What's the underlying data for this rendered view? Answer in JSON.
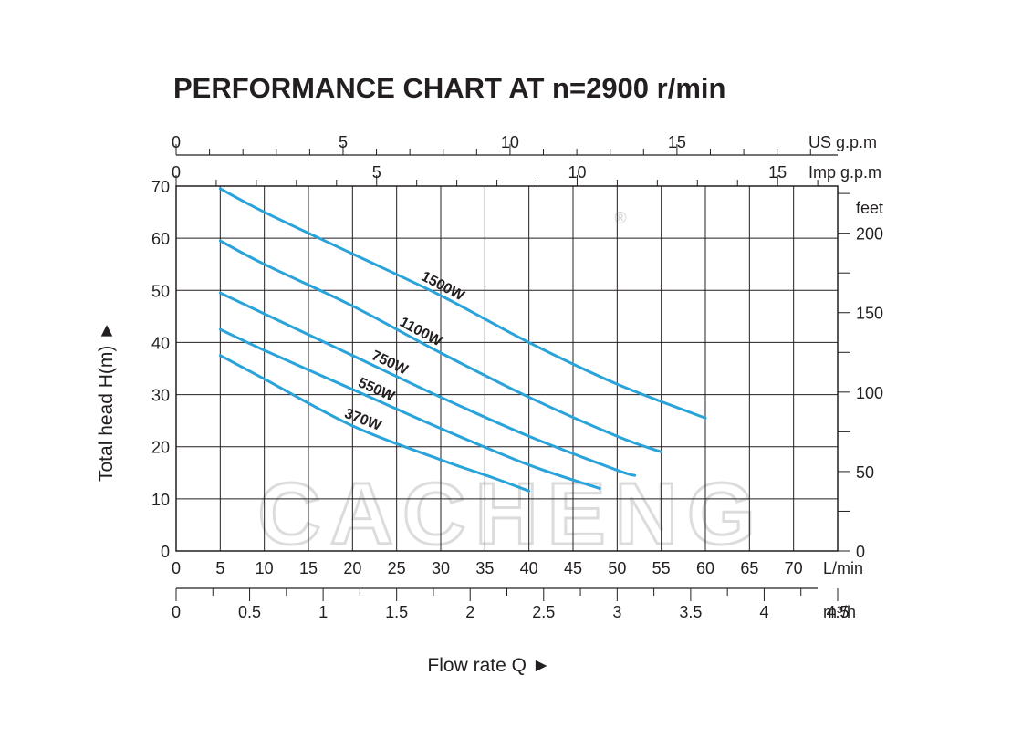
{
  "chart_data": {
    "type": "line",
    "title": "PERFORMANCE CHART AT n=2900 r/min",
    "xlabel": "Flow rate   Q ►",
    "ylabel": "Total  head H(m) ►",
    "watermark": "CACHENG",
    "registered_mark": "®",
    "xlim": [
      0,
      75
    ],
    "ylim": [
      0,
      70
    ],
    "grid": true,
    "colors": {
      "curve": "#29a3da",
      "grid": "#231f20",
      "watermark": "#dcdcdc"
    },
    "x_ticks_lmin": [
      "0",
      "5",
      "10",
      "15",
      "20",
      "25",
      "30",
      "35",
      "40",
      "45",
      "50",
      "55",
      "60",
      "65",
      "70"
    ],
    "x_unit_lmin": "L/min",
    "x_ticks_m3h": [
      "0",
      "0.5",
      "1",
      "1.5",
      "2",
      "2.5",
      "3",
      "3.5",
      "4",
      "4.5"
    ],
    "x_unit_m3h": "m³/h",
    "x_ticks_usgpm": [
      "0",
      "5",
      "10",
      "15"
    ],
    "x_unit_usgpm": "US g.p.m",
    "x_ticks_impgpm": [
      "0",
      "5",
      "10",
      "15"
    ],
    "x_unit_impgpm": "Imp g.p.m",
    "y_ticks_m": [
      "0",
      "10",
      "20",
      "30",
      "40",
      "50",
      "60",
      "70"
    ],
    "y_ticks_feet": [
      "0",
      "50",
      "100",
      "150",
      "200"
    ],
    "y_unit_feet": "feet",
    "series": [
      {
        "name": "1500W",
        "x": [
          5,
          10,
          20,
          30,
          40,
          50,
          60
        ],
        "y": [
          69.5,
          65,
          57,
          49,
          40,
          32,
          25.5
        ]
      },
      {
        "name": "1100W",
        "x": [
          5,
          10,
          20,
          30,
          40,
          50,
          55
        ],
        "y": [
          59.5,
          55,
          47,
          38,
          29.5,
          22,
          19
        ]
      },
      {
        "name": "750W",
        "x": [
          5,
          10,
          20,
          30,
          40,
          50,
          52
        ],
        "y": [
          49.5,
          45.5,
          37.5,
          29.5,
          22,
          15.5,
          14.5
        ]
      },
      {
        "name": "550W",
        "x": [
          5,
          10,
          20,
          30,
          40,
          48
        ],
        "y": [
          42.5,
          38.5,
          31,
          23.5,
          16.5,
          12
        ]
      },
      {
        "name": "370W",
        "x": [
          5,
          10,
          20,
          30,
          36,
          40
        ],
        "y": [
          37.5,
          33,
          24,
          17.5,
          14,
          11.5
        ]
      }
    ]
  }
}
